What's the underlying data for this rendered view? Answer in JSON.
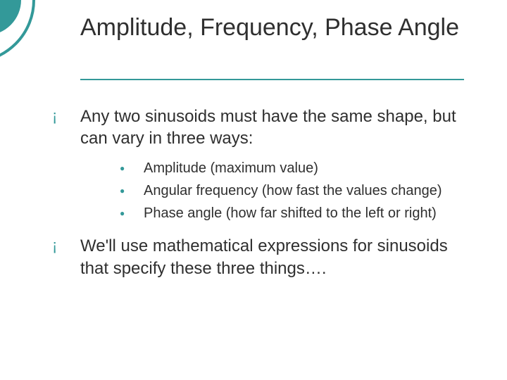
{
  "title": "Amplitude, Frequency, Phase Angle",
  "colors": {
    "accent": "#339999",
    "text": "#2f2f2f",
    "background": "#ffffff"
  },
  "typography": {
    "title_fontsize": 34,
    "body_fontsize": 24,
    "sub_fontsize": 20,
    "font_family": "Arial"
  },
  "bullets": {
    "level1_glyph": "¡",
    "level2_glyph": "●"
  },
  "items": [
    {
      "text": "Any two sinusoids must have the same shape, but can vary in three ways:",
      "subitems": [
        "Amplitude (maximum value)",
        "Angular frequency (how fast the values change)",
        "Phase angle (how far shifted to the left or right)"
      ]
    },
    {
      "text": "We'll use mathematical expressions for sinusoids that specify these three things….",
      "subitems": []
    }
  ]
}
